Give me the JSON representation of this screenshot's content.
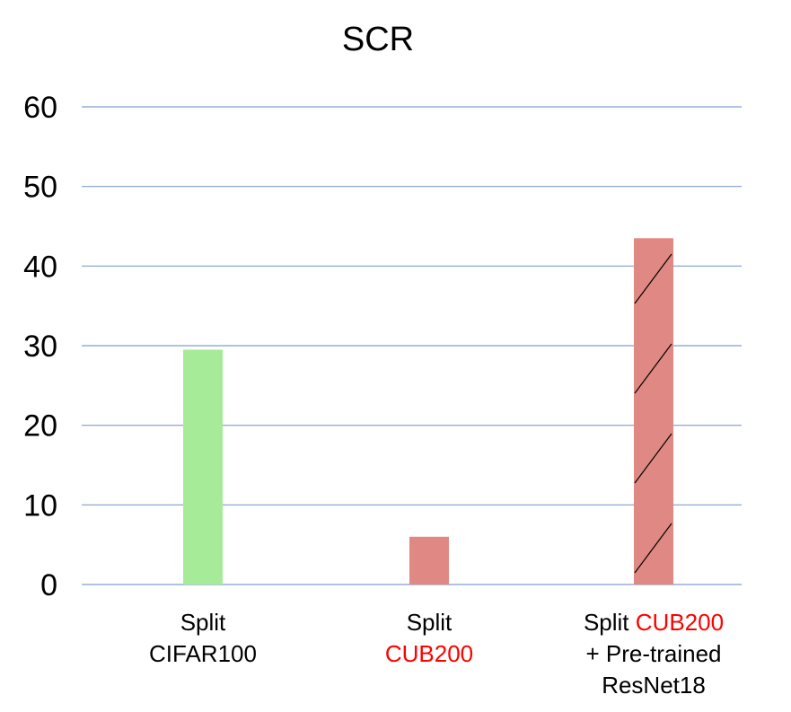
{
  "chart_data": {
    "type": "bar",
    "title": "SCR",
    "xlabel": "",
    "ylabel": "",
    "ylim": [
      0,
      60
    ],
    "yticks": [
      0,
      10,
      20,
      30,
      40,
      50,
      60
    ],
    "grid": true,
    "legend": "none",
    "categories": [
      {
        "lines": [
          [
            {
              "text": "Split",
              "highlight": false
            }
          ],
          [
            {
              "text": "CIFAR100",
              "highlight": false
            }
          ]
        ]
      },
      {
        "lines": [
          [
            {
              "text": "Split",
              "highlight": false
            }
          ],
          [
            {
              "text": "CUB200",
              "highlight": true
            }
          ]
        ]
      },
      {
        "lines": [
          [
            {
              "text": "Split ",
              "highlight": false
            },
            {
              "text": "CUB200",
              "highlight": true
            }
          ],
          [
            {
              "text": "+ Pre-trained",
              "highlight": false
            }
          ],
          [
            {
              "text": "ResNet18",
              "highlight": false
            }
          ]
        ]
      }
    ],
    "values": [
      29.5,
      6.0,
      43.5
    ],
    "bar_colors": [
      "#a6ec98",
      "#e08984",
      "#e08984"
    ],
    "hatched": [
      false,
      false,
      true
    ],
    "highlight_color": "#ff0000",
    "text_color": "#000000",
    "grid_color": "#7f9fcf"
  }
}
